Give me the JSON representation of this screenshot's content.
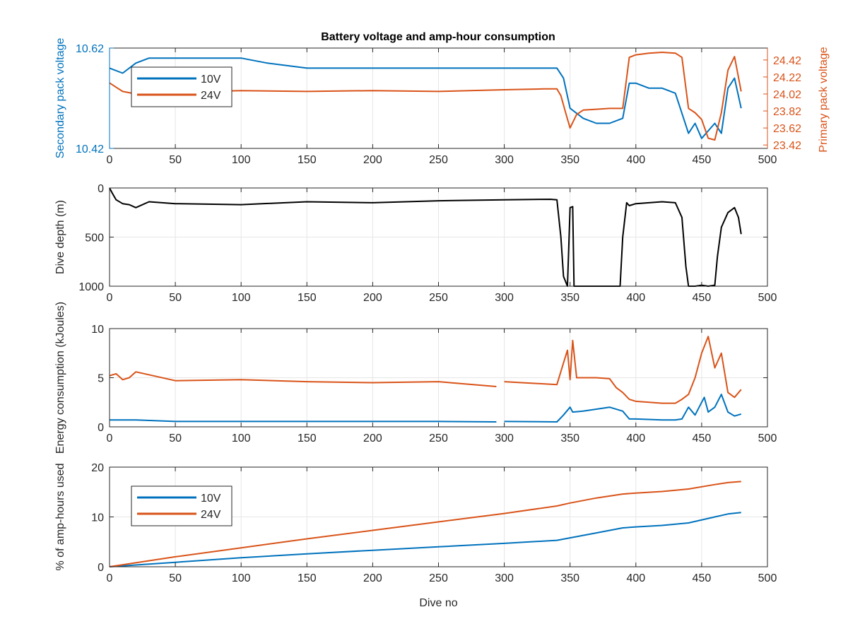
{
  "title": "Battery voltage and amp-hour consumption",
  "colors": {
    "blue": "#0072bd",
    "orange": "#d95319",
    "black": "#000000",
    "grid": "#e6e6e6",
    "axis": "#262626"
  },
  "chart_data": [
    {
      "type": "line",
      "title": "Battery voltage and amp-hour consumption",
      "xlabel": "",
      "ylabel": "Secondary pack voltage",
      "ylabel_right": "Primary pack voltage",
      "xlim": [
        0,
        500
      ],
      "ylim": [
        10.42,
        10.62
      ],
      "ylim_right": [
        23.38,
        24.56
      ],
      "x_ticks": [
        "0",
        "50",
        "100",
        "150",
        "200",
        "250",
        "300",
        "350",
        "400",
        "450",
        "500"
      ],
      "y_ticks": [
        "10.42",
        "10.62"
      ],
      "y_ticks_right": [
        "23.42",
        "23.62",
        "23.82",
        "24.02",
        "24.22",
        "24.42"
      ],
      "legend": {
        "position": "top-left",
        "entries": [
          "10V",
          "24V"
        ]
      },
      "grid": true,
      "series": [
        {
          "name": "10V",
          "axis": "left",
          "color": "#0072bd",
          "x": [
            0,
            10,
            20,
            30,
            50,
            80,
            100,
            120,
            150,
            200,
            250,
            300,
            330,
            340,
            345,
            350,
            360,
            370,
            380,
            390,
            395,
            400,
            410,
            420,
            430,
            440,
            445,
            450,
            460,
            465,
            470,
            475,
            480
          ],
          "y": [
            10.58,
            10.57,
            10.59,
            10.6,
            10.6,
            10.6,
            10.6,
            10.59,
            10.58,
            10.58,
            10.58,
            10.58,
            10.58,
            10.58,
            10.56,
            10.5,
            10.48,
            10.47,
            10.47,
            10.48,
            10.55,
            10.55,
            10.54,
            10.54,
            10.53,
            10.45,
            10.47,
            10.44,
            10.47,
            10.45,
            10.54,
            10.56,
            10.5
          ]
        },
        {
          "name": "24V",
          "axis": "right",
          "color": "#d95319",
          "x": [
            0,
            5,
            10,
            20,
            30,
            50,
            100,
            150,
            200,
            250,
            300,
            330,
            340,
            343,
            347,
            350,
            355,
            360,
            370,
            380,
            390,
            395,
            400,
            410,
            420,
            430,
            435,
            440,
            445,
            450,
            455,
            460,
            465,
            470,
            475,
            480
          ],
          "y": [
            24.15,
            24.1,
            24.05,
            24.02,
            24.03,
            24.04,
            24.06,
            24.05,
            24.06,
            24.05,
            24.07,
            24.08,
            24.08,
            24.0,
            23.78,
            23.62,
            23.78,
            23.83,
            23.84,
            23.85,
            23.85,
            24.45,
            24.48,
            24.5,
            24.51,
            24.5,
            24.45,
            23.85,
            23.8,
            23.72,
            23.5,
            23.48,
            23.8,
            24.3,
            24.46,
            24.05
          ]
        }
      ]
    },
    {
      "type": "line",
      "xlabel": "",
      "ylabel": "Dive depth (m)",
      "xlim": [
        0,
        500
      ],
      "ylim": [
        0,
        1000
      ],
      "y_reversed": true,
      "x_ticks": [
        "0",
        "50",
        "100",
        "150",
        "200",
        "250",
        "300",
        "350",
        "400",
        "450",
        "500"
      ],
      "y_ticks": [
        "0",
        "500",
        "1000"
      ],
      "grid": true,
      "series": [
        {
          "color": "#000000",
          "x": [
            0,
            2,
            5,
            10,
            15,
            20,
            30,
            50,
            100,
            150,
            200,
            250,
            300,
            335,
            340,
            343,
            345,
            348,
            350,
            352,
            353,
            355,
            360,
            370,
            380,
            388,
            390,
            393,
            395,
            400,
            420,
            430,
            435,
            438,
            440,
            445,
            450,
            455,
            460,
            462,
            465,
            470,
            475,
            478,
            480
          ],
          "y": [
            0,
            50,
            120,
            160,
            170,
            200,
            140,
            160,
            170,
            140,
            150,
            130,
            120,
            115,
            120,
            500,
            900,
            1000,
            200,
            190,
            1000,
            1000,
            1000,
            1000,
            1000,
            1000,
            500,
            150,
            180,
            160,
            140,
            150,
            300,
            800,
            1000,
            1000,
            990,
            1000,
            990,
            700,
            400,
            250,
            200,
            300,
            470
          ]
        }
      ]
    },
    {
      "type": "line",
      "xlabel": "",
      "ylabel": "Energy consumption (kJoules)",
      "xlim": [
        0,
        500
      ],
      "ylim": [
        0,
        10
      ],
      "x_ticks": [
        "0",
        "50",
        "100",
        "150",
        "200",
        "250",
        "300",
        "350",
        "400",
        "450",
        "500"
      ],
      "y_ticks": [
        "0",
        "5",
        "10"
      ],
      "grid": true,
      "series": [
        {
          "name": "24V",
          "color": "#d95319",
          "x": [
            0,
            5,
            10,
            15,
            20,
            50,
            100,
            150,
            200,
            250,
            294,
            296,
            300,
            340,
            345,
            348,
            350,
            352,
            355,
            360,
            370,
            380,
            385,
            390,
            395,
            400,
            420,
            430,
            435,
            440,
            445,
            450,
            455,
            460,
            465,
            470,
            475,
            480
          ],
          "y": [
            5.2,
            5.4,
            4.8,
            5.0,
            5.6,
            4.7,
            4.8,
            4.6,
            4.5,
            4.6,
            4.1,
            null,
            4.6,
            4.3,
            6.5,
            7.8,
            4.8,
            8.8,
            5.0,
            5.0,
            5.0,
            4.9,
            4.0,
            3.5,
            2.8,
            2.6,
            2.4,
            2.4,
            2.8,
            3.3,
            5.0,
            7.5,
            9.2,
            6.0,
            7.5,
            3.5,
            3.0,
            3.8
          ]
        },
        {
          "name": "10V",
          "color": "#0072bd",
          "x": [
            0,
            20,
            50,
            100,
            150,
            200,
            250,
            294,
            296,
            300,
            340,
            345,
            350,
            352,
            360,
            380,
            390,
            395,
            400,
            420,
            430,
            435,
            440,
            445,
            450,
            452,
            455,
            460,
            465,
            470,
            475,
            480
          ],
          "y": [
            0.7,
            0.7,
            0.55,
            0.55,
            0.55,
            0.55,
            0.55,
            0.5,
            null,
            0.55,
            0.5,
            1.2,
            2.0,
            1.5,
            1.6,
            2.0,
            1.6,
            0.8,
            0.8,
            0.7,
            0.7,
            0.8,
            2.0,
            1.2,
            2.5,
            3.0,
            1.5,
            2.0,
            3.3,
            1.5,
            1.1,
            1.3
          ]
        }
      ]
    },
    {
      "type": "line",
      "xlabel": "Dive no",
      "ylabel": "% of amp-hours used",
      "xlim": [
        0,
        500
      ],
      "ylim": [
        0,
        20
      ],
      "x_ticks": [
        "0",
        "50",
        "100",
        "150",
        "200",
        "250",
        "300",
        "350",
        "400",
        "450",
        "500"
      ],
      "y_ticks": [
        "0",
        "10",
        "20"
      ],
      "legend": {
        "position": "top-left",
        "entries": [
          "10V",
          "24V"
        ]
      },
      "grid": true,
      "series": [
        {
          "name": "10V",
          "color": "#0072bd",
          "x": [
            0,
            50,
            100,
            150,
            200,
            250,
            300,
            340,
            350,
            370,
            390,
            400,
            420,
            440,
            460,
            470,
            480
          ],
          "y": [
            0,
            0.9,
            1.8,
            2.6,
            3.3,
            4.0,
            4.7,
            5.3,
            5.8,
            6.8,
            7.8,
            8.0,
            8.3,
            8.8,
            10.0,
            10.6,
            10.9
          ]
        },
        {
          "name": "24V",
          "color": "#d95319",
          "x": [
            0,
            50,
            100,
            150,
            200,
            250,
            300,
            340,
            350,
            370,
            390,
            400,
            420,
            440,
            460,
            470,
            480
          ],
          "y": [
            0,
            2.0,
            3.8,
            5.6,
            7.3,
            9.0,
            10.7,
            12.2,
            12.8,
            13.8,
            14.6,
            14.8,
            15.1,
            15.6,
            16.5,
            16.9,
            17.1
          ]
        }
      ]
    }
  ]
}
